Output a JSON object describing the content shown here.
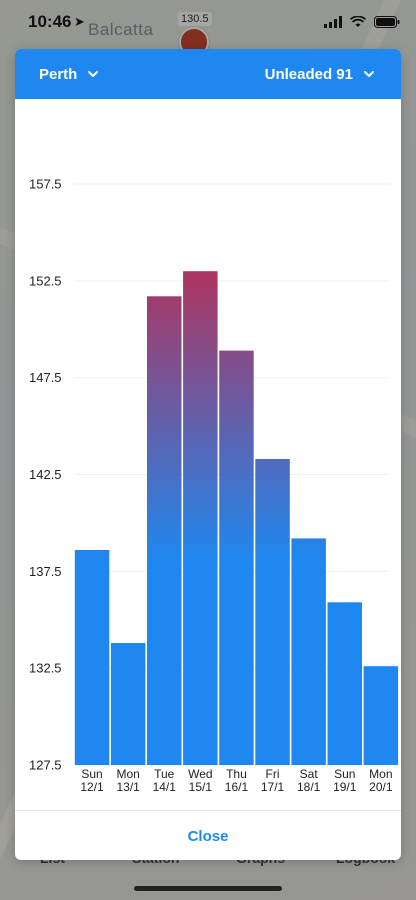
{
  "status_bar": {
    "time": "10:46"
  },
  "background_map": {
    "suburb_label": "Balcatta",
    "price_pin": "130.5",
    "tab_bar": [
      "List",
      "Station",
      "Graphs",
      "Logbook"
    ]
  },
  "header": {
    "city": "Perth",
    "fuel_type": "Unleaded 91"
  },
  "footer": {
    "close_label": "Close"
  },
  "colors": {
    "accent": "#1e88f0",
    "bar_top_high": "#b72f56",
    "bar_bottom": "#1e88f0"
  },
  "chart_data": {
    "type": "bar",
    "ylim": [
      127.5,
      157.5
    ],
    "yticks": [
      "127.5",
      "132.5",
      "137.5",
      "142.5",
      "147.5",
      "152.5",
      "157.5"
    ],
    "categories": [
      {
        "day": "Sun",
        "date": "12/1"
      },
      {
        "day": "Mon",
        "date": "13/1"
      },
      {
        "day": "Tue",
        "date": "14/1"
      },
      {
        "day": "Wed",
        "date": "15/1"
      },
      {
        "day": "Thu",
        "date": "16/1"
      },
      {
        "day": "Fri",
        "date": "17/1"
      },
      {
        "day": "Sat",
        "date": "18/1"
      },
      {
        "day": "Sun",
        "date": "19/1"
      },
      {
        "day": "Mon",
        "date": "20/1"
      }
    ],
    "values": [
      138.6,
      133.8,
      151.7,
      153.0,
      148.9,
      143.3,
      139.2,
      135.9,
      132.6
    ],
    "grid": true,
    "legend": "none"
  }
}
